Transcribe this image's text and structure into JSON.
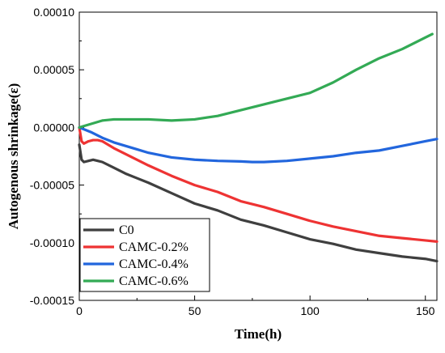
{
  "chart_data": {
    "type": "line",
    "title": "",
    "xlabel": "Time(h)",
    "ylabel": "Autogenous shrinkage(ε)",
    "xlim": [
      0,
      155
    ],
    "ylim": [
      -0.00015,
      0.0001
    ],
    "xticks": [
      0,
      50,
      100,
      150
    ],
    "xtick_labels": [
      "0",
      "50",
      "100",
      "150"
    ],
    "yticks": [
      0.0001,
      5e-05,
      0.0,
      -5e-05,
      -0.0001,
      -0.00015
    ],
    "ytick_labels": [
      "0.00010",
      "0.00005",
      "0.00000",
      "-0.00005",
      "-0.00010",
      "-0.00015"
    ],
    "grid": false,
    "legend_position": "bottom-left",
    "series": [
      {
        "name": "C0",
        "color": "#3f3f3f",
        "x": [
          0,
          1,
          2,
          4,
          6,
          8,
          10,
          15,
          20,
          25,
          30,
          40,
          50,
          60,
          70,
          80,
          90,
          100,
          110,
          120,
          130,
          140,
          150,
          155
        ],
        "y": [
          -1.5e-05,
          -2.8e-05,
          -3e-05,
          -2.9e-05,
          -2.8e-05,
          -2.9e-05,
          -3e-05,
          -3.5e-05,
          -4e-05,
          -4.4e-05,
          -4.8e-05,
          -5.7e-05,
          -6.6e-05,
          -7.2e-05,
          -8e-05,
          -8.5e-05,
          -9.1e-05,
          -9.7e-05,
          -0.000101,
          -0.000106,
          -0.000109,
          -0.000112,
          -0.000114,
          -0.000116
        ]
      },
      {
        "name": "CAMC-0.2%",
        "color": "#ee3333",
        "x": [
          0,
          1,
          2,
          4,
          6,
          8,
          10,
          15,
          20,
          25,
          30,
          40,
          50,
          60,
          70,
          80,
          90,
          100,
          110,
          120,
          130,
          140,
          150,
          155
        ],
        "y": [
          0.0,
          -1.2e-05,
          -1.4e-05,
          -1.2e-05,
          -1.1e-05,
          -1.1e-05,
          -1.2e-05,
          -1.8e-05,
          -2.3e-05,
          -2.8e-05,
          -3.3e-05,
          -4.2e-05,
          -5e-05,
          -5.6e-05,
          -6.4e-05,
          -6.9e-05,
          -7.5e-05,
          -8.1e-05,
          -8.6e-05,
          -9e-05,
          -9.4e-05,
          -9.6e-05,
          -9.8e-05,
          -9.9e-05
        ]
      },
      {
        "name": "CAMC-0.4%",
        "color": "#2266dd",
        "x": [
          0,
          5,
          10,
          15,
          20,
          25,
          30,
          40,
          50,
          60,
          70,
          75,
          80,
          90,
          100,
          110,
          120,
          130,
          140,
          150,
          155
        ],
        "y": [
          0.0,
          -4e-06,
          -9e-06,
          -1.3e-05,
          -1.6e-05,
          -1.9e-05,
          -2.2e-05,
          -2.6e-05,
          -2.8e-05,
          -2.9e-05,
          -2.95e-05,
          -3e-05,
          -3e-05,
          -2.9e-05,
          -2.7e-05,
          -2.5e-05,
          -2.2e-05,
          -2e-05,
          -1.6e-05,
          -1.2e-05,
          -1e-05
        ]
      },
      {
        "name": "CAMC-0.6%",
        "color": "#33aa55",
        "x": [
          0,
          5,
          10,
          15,
          20,
          25,
          30,
          40,
          50,
          60,
          70,
          80,
          90,
          100,
          110,
          120,
          130,
          140,
          150,
          153
        ],
        "y": [
          0.0,
          3e-06,
          6e-06,
          7e-06,
          7e-06,
          7e-06,
          7e-06,
          6e-06,
          7e-06,
          1e-05,
          1.5e-05,
          2e-05,
          2.5e-05,
          3e-05,
          3.9e-05,
          5e-05,
          6e-05,
          6.8e-05,
          7.8e-05,
          8.1e-05
        ]
      }
    ]
  }
}
